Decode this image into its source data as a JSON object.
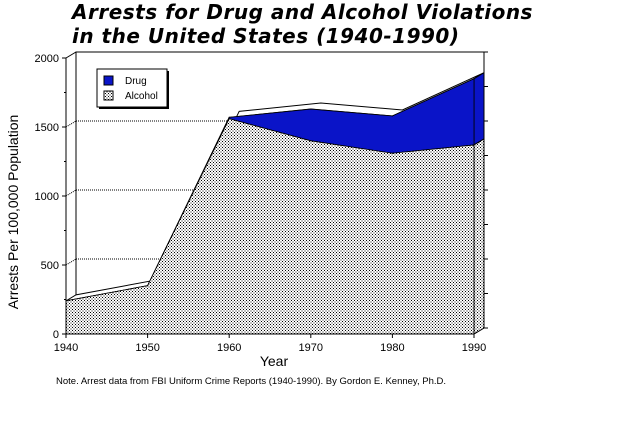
{
  "chart_data": {
    "type": "area",
    "title_line1": "Arrests for Drug and Alcohol Violations",
    "title_line2": "in the United States (1940-1990)",
    "xlabel": "Year",
    "ylabel": "Arrests Per 100,000 Population",
    "x": [
      1940,
      1950,
      1960,
      1970,
      1980,
      1990
    ],
    "x_ticks": [
      "1940",
      "1950",
      "1960",
      "1970",
      "1980",
      "1990"
    ],
    "y_ticks": [
      "0",
      "500",
      "1000",
      "1500",
      "2000"
    ],
    "ylim": [
      0,
      2000
    ],
    "stacked": true,
    "legend_position": "top-left",
    "series": [
      {
        "name": "Alcohol",
        "values": [
          240,
          350,
          1560,
          1400,
          1310,
          1370
        ],
        "color": "#ffffff",
        "pattern": "dotted"
      },
      {
        "name": "Drug",
        "values": [
          0,
          0,
          10,
          230,
          270,
          480
        ],
        "color": "#0a14c8"
      }
    ],
    "note": "Note.  Arrest data from FBI Uniform Crime Reports (1940-1990).  By Gordon E. Kenney, Ph.D."
  }
}
